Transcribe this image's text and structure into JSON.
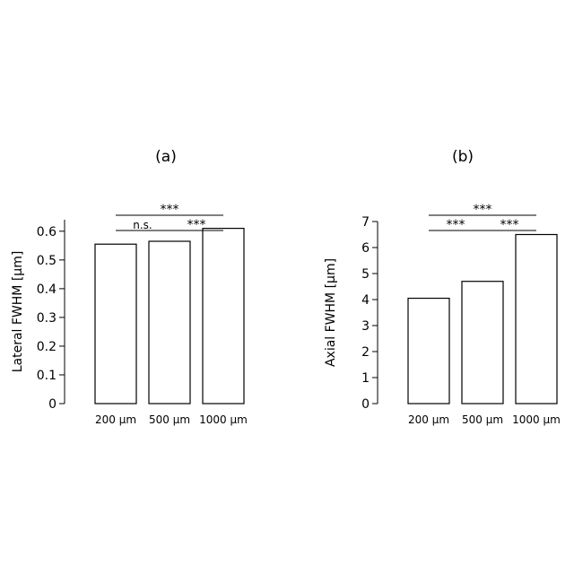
{
  "chart_data": [
    {
      "type": "bar",
      "panel_label": "(a)",
      "categories": [
        "200 μm",
        "500 μm",
        "1000 μm"
      ],
      "values": [
        0.555,
        0.565,
        0.61
      ],
      "ylabel": "Lateral FWHM [μm]",
      "ylim": [
        0,
        0.64
      ],
      "yticks": [
        "0",
        "0.1",
        "0.2",
        "0.3",
        "0.4",
        "0.5",
        "0.6"
      ],
      "grid": false,
      "bar_fill": "#ffffff",
      "bar_stroke": "#000000",
      "significance": [
        {
          "from": 0,
          "to": 1,
          "label": "n.s.",
          "level": 0
        },
        {
          "from": 1,
          "to": 2,
          "label": "***",
          "level": 0
        },
        {
          "from": 0,
          "to": 2,
          "label": "***",
          "level": 1
        }
      ]
    },
    {
      "type": "bar",
      "panel_label": "(b)",
      "categories": [
        "200 μm",
        "500 μm",
        "1000 μm"
      ],
      "values": [
        4.05,
        4.7,
        6.5
      ],
      "ylabel": "Axial FWHM [μm]",
      "ylim": [
        0,
        7
      ],
      "yticks": [
        "0",
        "1",
        "2",
        "3",
        "4",
        "5",
        "6",
        "7"
      ],
      "grid": false,
      "bar_fill": "#ffffff",
      "bar_stroke": "#000000",
      "significance": [
        {
          "from": 0,
          "to": 1,
          "label": "***",
          "level": 0
        },
        {
          "from": 1,
          "to": 2,
          "label": "***",
          "level": 0
        },
        {
          "from": 0,
          "to": 2,
          "label": "***",
          "level": 1
        }
      ]
    }
  ]
}
